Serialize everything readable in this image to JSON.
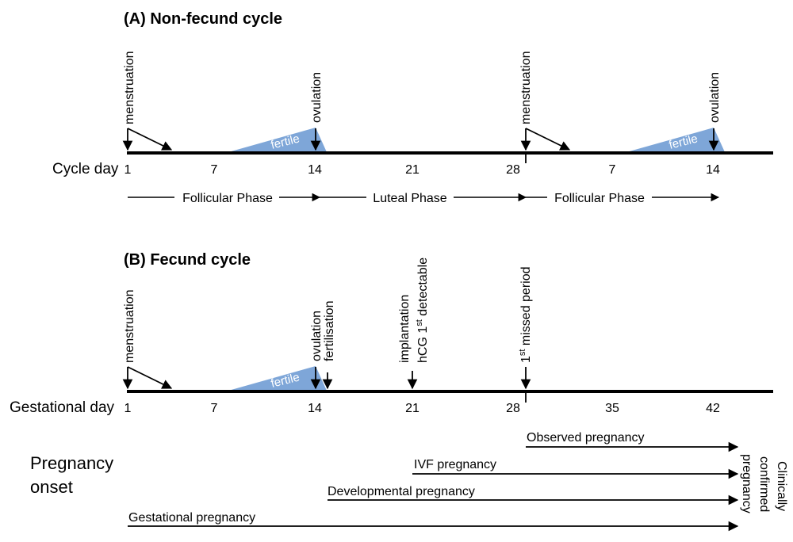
{
  "panel_a": {
    "title": "(A) Non-fecund cycle",
    "axis_label": "Cycle day",
    "ticks": [
      "1",
      "7",
      "14",
      "21",
      "28",
      "7",
      "14"
    ],
    "events": {
      "menstruation_1": "menstruation",
      "ovulation_1": "ovulation",
      "menstruation_2": "menstruation",
      "ovulation_2": "ovulation"
    },
    "fertile_label": "fertile",
    "phases": [
      "Follicular Phase",
      "Luteal Phase",
      "Follicular Phase"
    ]
  },
  "panel_b": {
    "title": "(B) Fecund cycle",
    "axis_label": "Gestational day",
    "ticks": [
      "1",
      "7",
      "14",
      "21",
      "28",
      "35",
      "42"
    ],
    "events": {
      "menstruation": "menstruation",
      "ovulation": "ovulation",
      "fertilisation": "fertilisation",
      "implantation": "implantation",
      "hcg_prefix": "hCG 1",
      "hcg_sup": "st",
      "hcg_suffix": " detectable",
      "missed_prefix": "1",
      "missed_sup": "st",
      "missed_suffix": " missed period"
    },
    "fertile_label": "fertile"
  },
  "pregnancy_onset": {
    "label_line1": "Pregnancy",
    "label_line2": "onset",
    "arrows": [
      "Observed pregnancy",
      "IVF pregnancy",
      "Developmental pregnancy",
      "Gestational pregnancy"
    ],
    "end_label_line1": "Clinically",
    "end_label_line2": "confirmed",
    "end_label_line3": "pregnancy"
  },
  "colors": {
    "fertile": "#7ea6d8",
    "line": "#000000"
  }
}
